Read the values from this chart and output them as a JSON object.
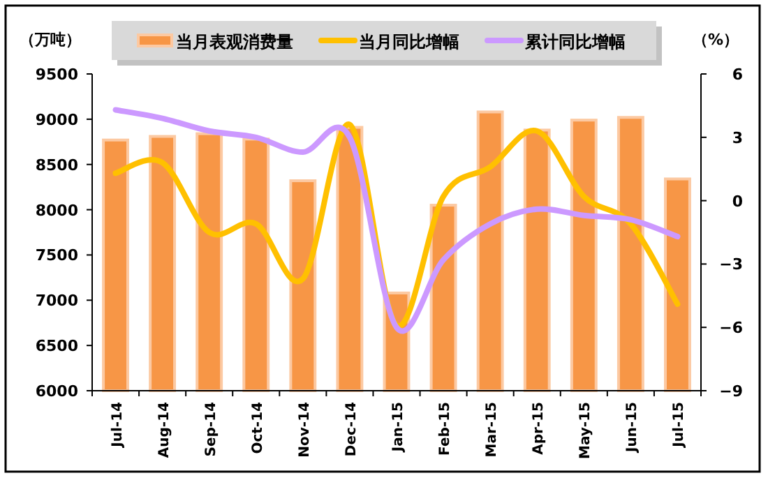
{
  "chart_data": {
    "type": "bar",
    "categories": [
      "Jul-14",
      "Aug-14",
      "Sep-14",
      "Oct-14",
      "Nov-14",
      "Dec-14",
      "Jan-15",
      "Feb-15",
      "Mar-15",
      "Apr-15",
      "May-15",
      "Jun-15",
      "Jul-15"
    ],
    "ylabel": "（万吨）",
    "y2label": "（%）",
    "series": [
      {
        "name": "当月表观消费量",
        "color": "#f79646",
        "values": [
          8770,
          8810,
          8840,
          8780,
          8320,
          8910,
          7080,
          8050,
          9080,
          8880,
          8990,
          9020,
          8340
        ]
      },
      {
        "name": "当月同比增幅",
        "type": "line",
        "axis": "y2",
        "color": "#ffc000",
        "values": [
          1.3,
          1.8,
          -1.5,
          -1.1,
          -3.7,
          3.6,
          -5.9,
          0.2,
          1.6,
          3.3,
          0.2,
          -1.1,
          -4.9
        ]
      },
      {
        "name": "累计同比增幅",
        "type": "line",
        "axis": "y2",
        "color": "#cc99ff",
        "values": [
          4.3,
          3.9,
          3.3,
          3.0,
          2.3,
          3.0,
          -6.0,
          -2.8,
          -1.1,
          -0.4,
          -0.7,
          -0.9,
          -1.7
        ]
      }
    ],
    "ylim": [
      6000,
      9500
    ],
    "yticks": [
      6000,
      6500,
      7000,
      7500,
      8000,
      8500,
      9000,
      9500
    ],
    "y2lim": [
      -9,
      6
    ],
    "y2ticks": [
      -9,
      -6,
      -3,
      0,
      3,
      6
    ],
    "legend": "top",
    "grid": false
  }
}
